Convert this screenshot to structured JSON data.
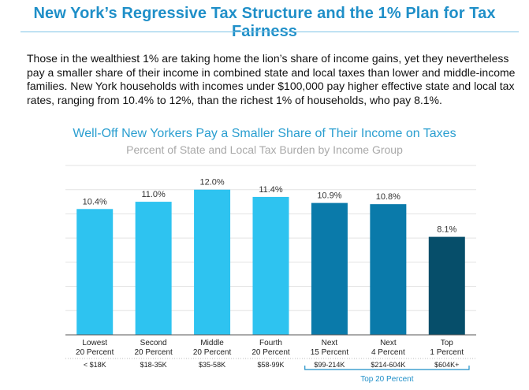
{
  "header": {
    "title": "New York’s Regressive Tax Structure and the 1% Plan for Tax Fairness"
  },
  "intro": {
    "paragraph": "Those in the wealthiest 1% are taking home the lion’s share of income gains, yet they nevertheless pay a smaller share of their income in combined state and local taxes than lower and middle-income families. New York households with incomes under $100,000 pay higher effective state and local tax rates, ranging from 10.4% to 12%, than the richest 1% of households, who pay 8.1%."
  },
  "colors": {
    "title": "#1f8fc8",
    "bar_bottom80": "#2ec3f0",
    "bar_next": "#0a7aaa",
    "bar_top": "#064e6a",
    "bracket": "#1f8fc8"
  },
  "chart_data": {
    "type": "bar",
    "title": "Well-Off New Yorkers Pay a Smaller Share of Their Income on Taxes",
    "subtitle": "Percent of State and Local Tax Burden by Income Group",
    "xlabel": "",
    "ylabel": "",
    "ylim": [
      0,
      14
    ],
    "grid": true,
    "categories": [
      {
        "line1": "Lowest",
        "line2": "20 Percent",
        "range": "< $18K",
        "value": 10.4,
        "label": "10.4%",
        "color": "#2ec3f0"
      },
      {
        "line1": "Second",
        "line2": "20 Percent",
        "range": "$18-35K",
        "value": 11.0,
        "label": "11.0%",
        "color": "#2ec3f0"
      },
      {
        "line1": "Middle",
        "line2": "20 Percent",
        "range": "$35-58K",
        "value": 12.0,
        "label": "12.0%",
        "color": "#2ec3f0"
      },
      {
        "line1": "Fourth",
        "line2": "20 Percent",
        "range": "$58-99K",
        "value": 11.4,
        "label": "11.4%",
        "color": "#2ec3f0"
      },
      {
        "line1": "Next",
        "line2": "15 Percent",
        "range": "$99-214K",
        "value": 10.9,
        "label": "10.9%",
        "color": "#0a7aaa"
      },
      {
        "line1": "Next",
        "line2": "4 Percent",
        "range": "$214-604K",
        "value": 10.8,
        "label": "10.8%",
        "color": "#0a7aaa"
      },
      {
        "line1": "Top",
        "line2": "1 Percent",
        "range": "$604K+",
        "value": 8.1,
        "label": "8.1%",
        "color": "#064e6a"
      }
    ],
    "group_annotation": {
      "label": "Top 20 Percent",
      "from_index": 4,
      "to_index": 6
    }
  }
}
